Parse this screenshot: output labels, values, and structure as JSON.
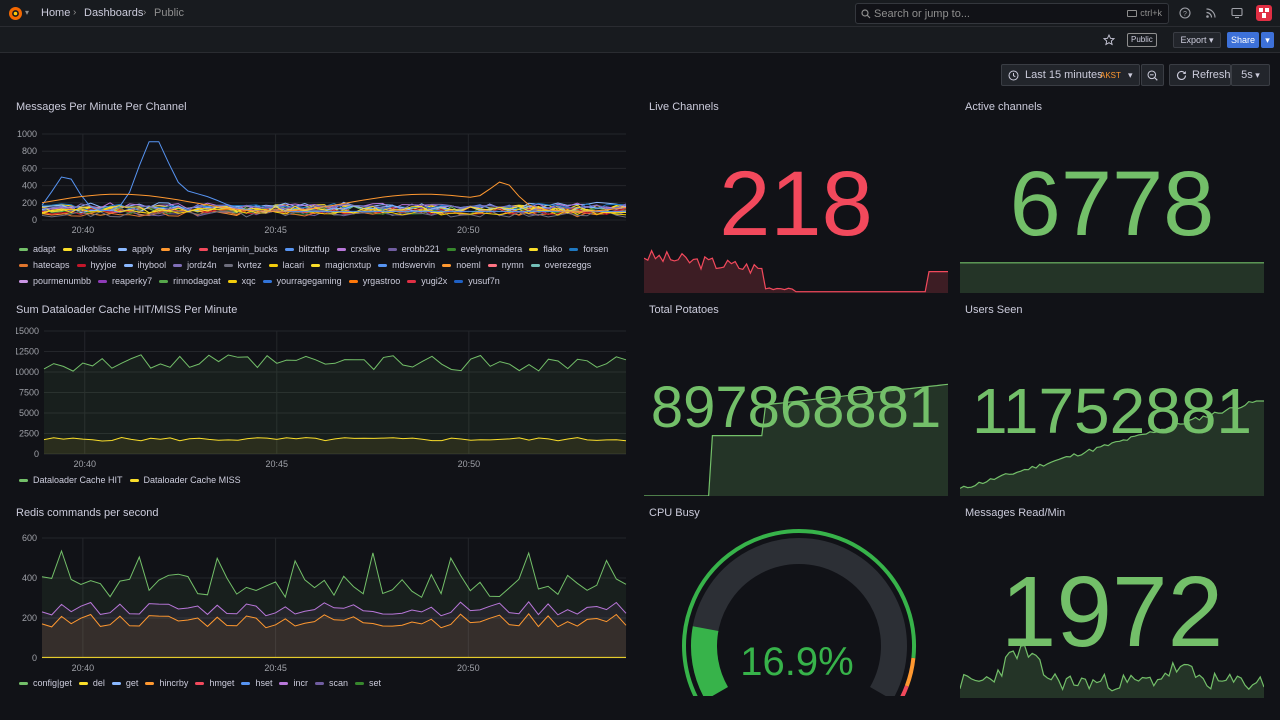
{
  "breadcrumb": {
    "home": "Home",
    "dashboards": "Dashboards",
    "current": "Public"
  },
  "search": {
    "placeholder": "Search or jump to...",
    "shortcut": "ctrl+k"
  },
  "toolbar": {
    "public_badge": "Public",
    "export_label": "Export",
    "share_label": "Share"
  },
  "time_picker": {
    "range": "Last 15 minutes",
    "tz": "AKST",
    "refresh_label": "Refresh",
    "interval": "5s"
  },
  "colors": {
    "green": "#73bf69",
    "red": "#f2495c",
    "yellow": "#fade2a",
    "bg": "#111217"
  },
  "panels": {
    "messages": {
      "title": "Messages Per Minute Per Channel",
      "yticks": [
        "1000",
        "800",
        "600",
        "400",
        "200",
        "0"
      ],
      "xticks": [
        "20:40",
        "20:45",
        "20:50"
      ],
      "legend": [
        {
          "label": "adapt",
          "color": "#73bf69"
        },
        {
          "label": "alkobliss",
          "color": "#fade2a"
        },
        {
          "label": "apply",
          "color": "#8ab8ff"
        },
        {
          "label": "arky",
          "color": "#ff9830"
        },
        {
          "label": "benjamin_bucks",
          "color": "#f2495c"
        },
        {
          "label": "blitztfup",
          "color": "#5794f2"
        },
        {
          "label": "crxslive",
          "color": "#b877d9"
        },
        {
          "label": "erobb221",
          "color": "#705da0"
        },
        {
          "label": "evelynomadera",
          "color": "#37872d"
        },
        {
          "label": "flako",
          "color": "#fade2a"
        },
        {
          "label": "forsen",
          "color": "#1f78c1"
        },
        {
          "label": "hatecaps",
          "color": "#e0752d"
        },
        {
          "label": "hyyjoe",
          "color": "#c4162a"
        },
        {
          "label": "ihybool",
          "color": "#8ab8ff"
        },
        {
          "label": "jordz4n",
          "color": "#806eb7"
        },
        {
          "label": "kvrtez",
          "color": "#6d6d7c"
        },
        {
          "label": "lacari",
          "color": "#f2cc0c"
        },
        {
          "label": "magicnxtup",
          "color": "#fade2a"
        },
        {
          "label": "mdswervin",
          "color": "#5794f2"
        },
        {
          "label": "noeml",
          "color": "#ff9830"
        },
        {
          "label": "nymn",
          "color": "#ff7383"
        },
        {
          "label": "overezeggs",
          "color": "#73bfb8"
        },
        {
          "label": "pourmenumbb",
          "color": "#ca95e5"
        },
        {
          "label": "reaperky7",
          "color": "#8f3bb8"
        },
        {
          "label": "rinnodagoat",
          "color": "#56a64b"
        },
        {
          "label": "xqc",
          "color": "#f2cc0c"
        },
        {
          "label": "yourragegaming",
          "color": "#3274d9"
        },
        {
          "label": "yrgastroo",
          "color": "#ff780a"
        },
        {
          "label": "yugi2x",
          "color": "#e02f44"
        },
        {
          "label": "yusuf7n",
          "color": "#1f60c4"
        }
      ]
    },
    "cache": {
      "title": "Sum Dataloader Cache HIT/MISS Per Minute",
      "yticks": [
        "15000",
        "12500",
        "10000",
        "7500",
        "5000",
        "2500",
        "0"
      ],
      "xticks": [
        "20:40",
        "20:45",
        "20:50"
      ],
      "legend": [
        {
          "label": "Dataloader Cache HIT",
          "color": "#73bf69"
        },
        {
          "label": "Dataloader Cache MISS",
          "color": "#fade2a"
        }
      ]
    },
    "redis": {
      "title": "Redis commands per second",
      "yticks": [
        "600",
        "400",
        "200",
        "0"
      ],
      "xticks": [
        "20:40",
        "20:45",
        "20:50"
      ],
      "legend": [
        {
          "label": "config|get",
          "color": "#73bf69"
        },
        {
          "label": "del",
          "color": "#fade2a"
        },
        {
          "label": "get",
          "color": "#8ab8ff"
        },
        {
          "label": "hincrby",
          "color": "#ff9830"
        },
        {
          "label": "hmget",
          "color": "#f2495c"
        },
        {
          "label": "hset",
          "color": "#5794f2"
        },
        {
          "label": "incr",
          "color": "#b877d9"
        },
        {
          "label": "scan",
          "color": "#705da0"
        },
        {
          "label": "set",
          "color": "#37872d"
        }
      ]
    },
    "live_channels": {
      "title": "Live Channels",
      "value": "218"
    },
    "active_channels": {
      "title": "Active channels",
      "value": "6778"
    },
    "total_potatoes": {
      "title": "Total Potatoes",
      "value": "897868881"
    },
    "users_seen": {
      "title": "Users Seen",
      "value": "11752881"
    },
    "cpu_busy": {
      "title": "CPU Busy",
      "value": "16.9%",
      "percent": 16.9
    },
    "messages_read": {
      "title": "Messages Read/Min",
      "value": "1972"
    }
  }
}
